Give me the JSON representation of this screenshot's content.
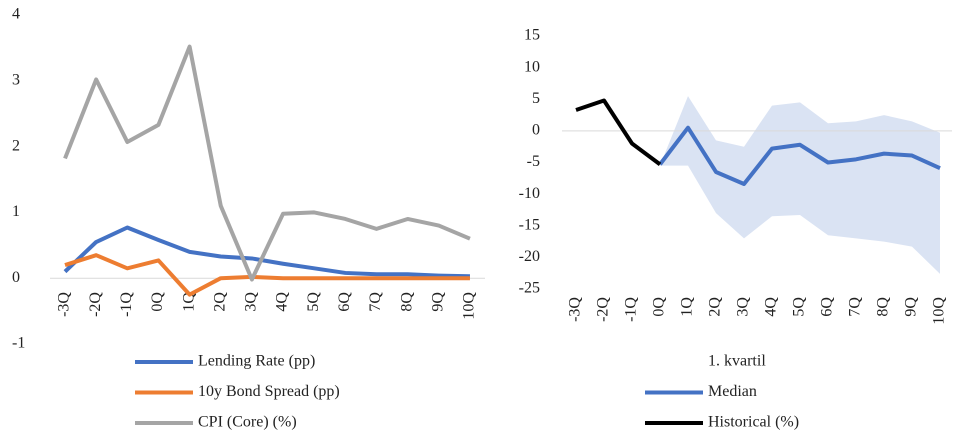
{
  "chart_data": [
    {
      "type": "line",
      "categories": [
        "-3Q",
        "-2Q",
        "-1Q",
        "0Q",
        "1Q",
        "2Q",
        "3Q",
        "4Q",
        "5Q",
        "6Q",
        "7Q",
        "8Q",
        "9Q",
        "10Q"
      ],
      "ylim": [
        -1,
        4
      ],
      "yticks": [
        -1,
        0,
        1,
        2,
        3,
        4
      ],
      "series": [
        {
          "name": "Lending Rate (pp)",
          "color": "#4472c4",
          "values": [
            0.1,
            0.55,
            0.77,
            0.58,
            0.4,
            0.33,
            0.3,
            0.22,
            0.15,
            0.08,
            0.06,
            0.06,
            0.04,
            0.03
          ]
        },
        {
          "name": "10y Bond Spread (pp)",
          "color": "#ed7d31",
          "values": [
            0.2,
            0.35,
            0.15,
            0.27,
            -0.25,
            0,
            0.02,
            0,
            0,
            0,
            0,
            0,
            0,
            0
          ]
        },
        {
          "name": "CPI (Core) (%)",
          "color": "#a5a5a5",
          "values": [
            1.82,
            3.02,
            2.07,
            2.33,
            3.52,
            1.1,
            -0.02,
            0.98,
            1.0,
            0.9,
            0.75,
            0.9,
            0.8,
            0.6
          ]
        }
      ]
    },
    {
      "type": "line",
      "categories": [
        "-3Q",
        "-2Q",
        "-1Q",
        "0Q",
        "1Q",
        "2Q",
        "3Q",
        "4Q",
        "5Q",
        "6Q",
        "7Q",
        "8Q",
        "9Q",
        "10Q"
      ],
      "ylim": [
        -25,
        15
      ],
      "yticks": [
        -25,
        -20,
        -15,
        -10,
        -5,
        0,
        5,
        10,
        15
      ],
      "series": [
        {
          "name": "1. kvartil",
          "color": "#dae3f3",
          "low": [
            null,
            null,
            null,
            -5.5,
            -5.5,
            -13,
            -17,
            -13.5,
            -13.3,
            -16.5,
            -17,
            -17.5,
            -18.3,
            -22.6
          ],
          "high": [
            null,
            null,
            null,
            -5.5,
            5.5,
            -1.5,
            -2.5,
            4,
            4.5,
            1.2,
            1.5,
            2.5,
            1.5,
            -0.3
          ]
        },
        {
          "name": "Median",
          "color": "#4472c4",
          "values": [
            null,
            null,
            null,
            -5.3,
            0.5,
            -6.5,
            -8.4,
            -2.8,
            -2.2,
            -5,
            -4.5,
            -3.6,
            -3.9,
            -5.9
          ]
        },
        {
          "name": "Historical (%)",
          "color": "#000000",
          "values": [
            3.3,
            4.8,
            -2,
            -5.3,
            null,
            null,
            null,
            null,
            null,
            null,
            null,
            null,
            null,
            null
          ]
        }
      ]
    }
  ]
}
